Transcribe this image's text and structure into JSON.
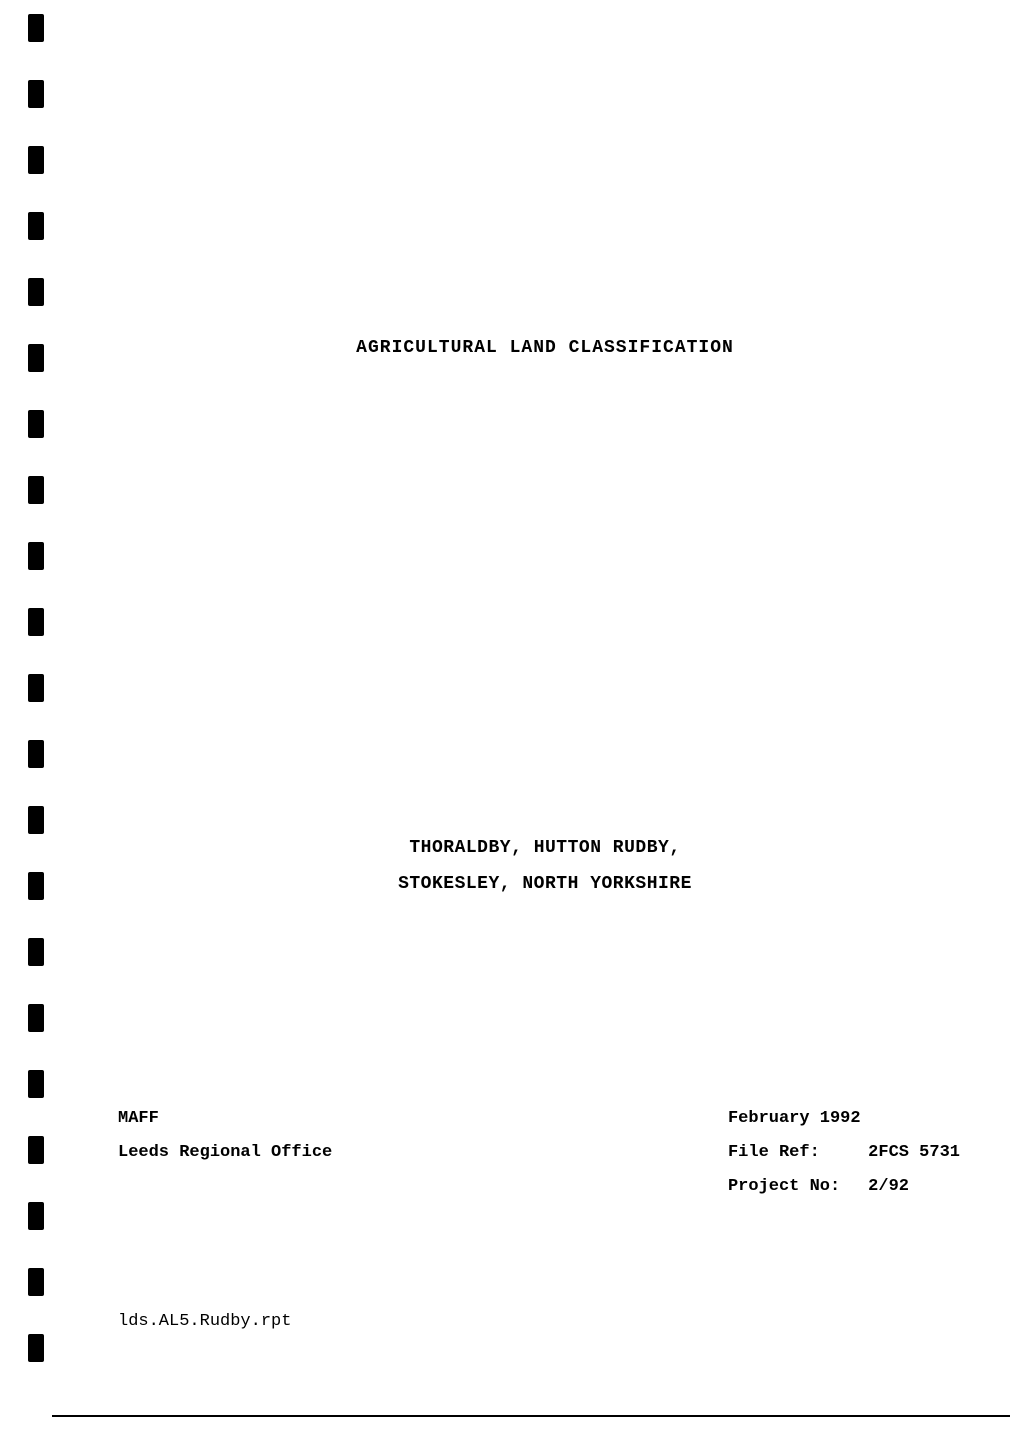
{
  "document": {
    "title": "AGRICULTURAL LAND CLASSIFICATION",
    "subtitle_line1": "THORALDBY, HUTTON RUDBY,",
    "subtitle_line2": "STOKESLEY, NORTH YORKSHIRE",
    "footer_left": {
      "org": "MAFF",
      "office": "Leeds Regional Office"
    },
    "footer_right": {
      "date": "February 1992",
      "file_ref_label": "File Ref:",
      "file_ref_value": "2FCS 5731",
      "project_no_label": "Project No:",
      "project_no_value": "2/92"
    },
    "doc_id": "lds.AL5.Rudby.rpt"
  },
  "style": {
    "font_family": "Courier New",
    "text_color": "#000000",
    "background_color": "#ffffff",
    "title_fontsize": 18,
    "body_fontsize": 17,
    "binding_mark_color": "#000000",
    "binding_mark_count": 21
  }
}
